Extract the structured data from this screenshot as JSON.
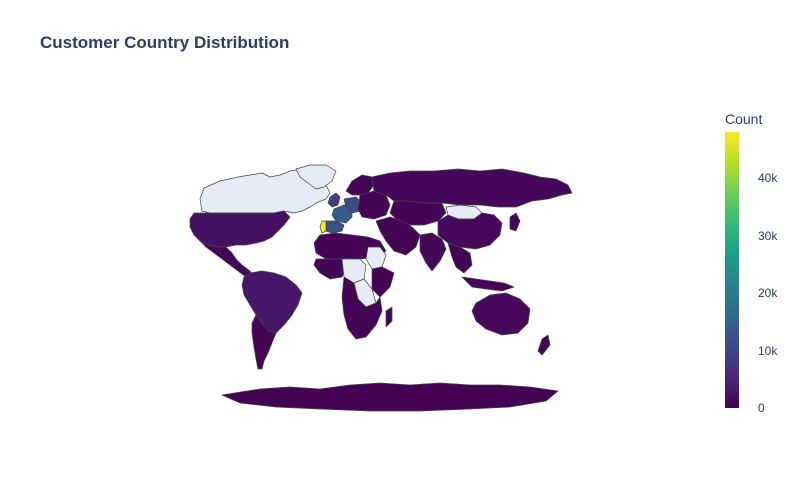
{
  "title": "Customer Country Distribution",
  "colorbar": {
    "title": "Count",
    "ticks": [
      "0",
      "10k",
      "20k",
      "30k",
      "40k"
    ],
    "tick_values": [
      0,
      10000,
      20000,
      30000,
      40000
    ],
    "max": 48000,
    "colorscale": [
      "#440154",
      "#482878",
      "#3e4989",
      "#31688e",
      "#26828e",
      "#1f9e89",
      "#35b779",
      "#6ece58",
      "#b5de2b",
      "#fde725"
    ]
  },
  "colors": {
    "no_data": "#e5ecf6",
    "low": "#440154",
    "mid_low": "#463480",
    "mid": "#3b528b",
    "high": "#fde725",
    "border": "#444444"
  },
  "chart_data": {
    "type": "choropleth",
    "title": "Customer Country Distribution",
    "color_label": "Count",
    "color_range": [
      0,
      48000
    ],
    "regions": [
      {
        "name": "Canada",
        "value": null
      },
      {
        "name": "Greenland",
        "value": null
      },
      {
        "name": "United States",
        "value": 2000
      },
      {
        "name": "Mexico",
        "value": 500
      },
      {
        "name": "Brazil",
        "value": 3000
      },
      {
        "name": "Argentina",
        "value": 500
      },
      {
        "name": "Portugal",
        "value": 48000
      },
      {
        "name": "Spain",
        "value": 12000
      },
      {
        "name": "France",
        "value": 14000
      },
      {
        "name": "Germany",
        "value": 11000
      },
      {
        "name": "United Kingdom",
        "value": 9000
      },
      {
        "name": "Russia",
        "value": 800
      },
      {
        "name": "China",
        "value": 1000
      },
      {
        "name": "Mongolia",
        "value": null
      },
      {
        "name": "India",
        "value": 800
      },
      {
        "name": "Australia",
        "value": 1000
      },
      {
        "name": "Antarctica",
        "value": 200
      },
      {
        "name": "Central Africa",
        "value": null
      },
      {
        "name": "Sudan",
        "value": null
      },
      {
        "name": "Africa (other)",
        "value": 500
      }
    ]
  }
}
